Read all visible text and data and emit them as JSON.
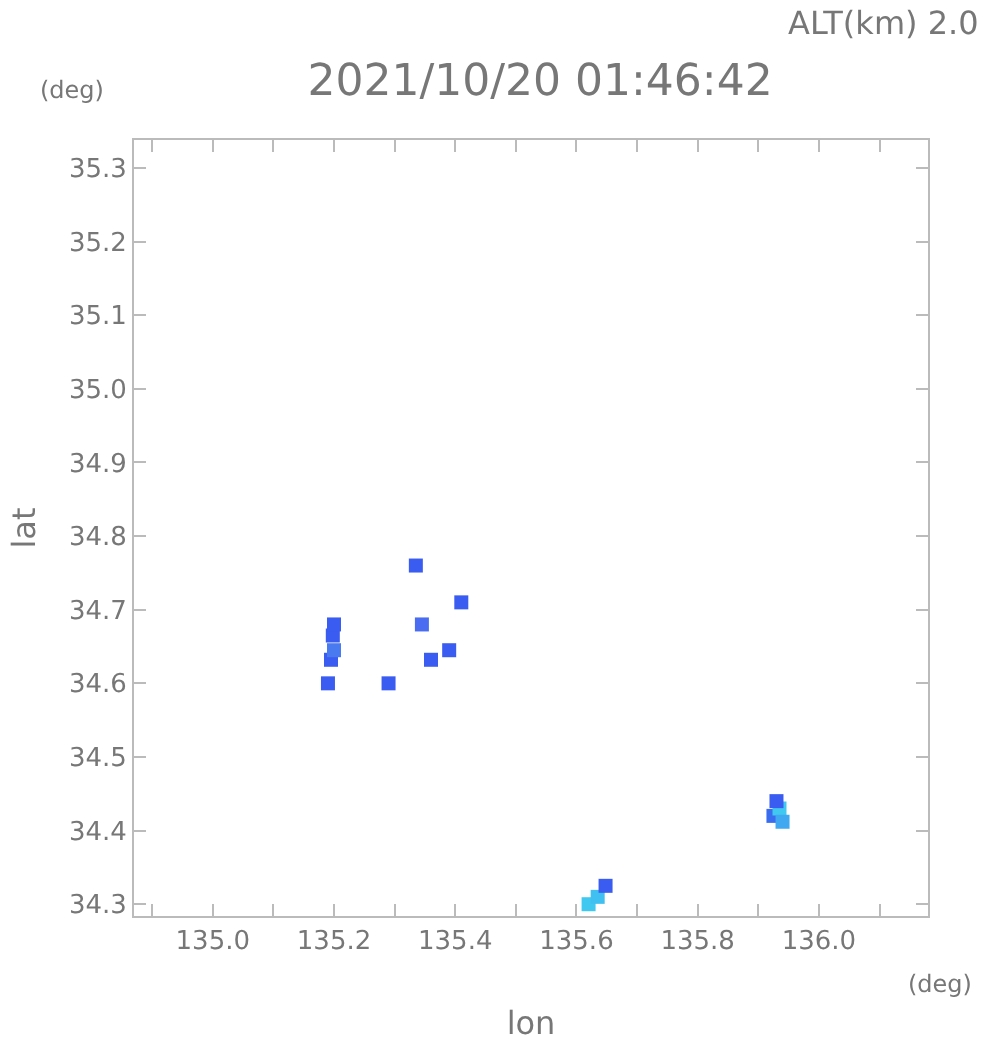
{
  "chart_data": {
    "type": "scatter",
    "title": "2021/10/20 01:46:42",
    "xlabel": "lon",
    "ylabel": "lat",
    "annotations": [
      "ALT(km) 2.0",
      "(deg)",
      "(deg)"
    ],
    "x": [
      135.19,
      135.195,
      135.2,
      135.198,
      135.2,
      135.29,
      135.335,
      135.345,
      135.39,
      135.41,
      135.36,
      135.62,
      135.635,
      135.648,
      135.925,
      135.935,
      135.94,
      135.93
    ],
    "values": [
      34.6,
      34.632,
      34.645,
      34.665,
      34.68,
      34.6,
      34.76,
      34.68,
      34.645,
      34.71,
      34.632,
      34.3,
      34.31,
      34.325,
      34.42,
      34.43,
      34.412,
      34.44
    ],
    "colors": [
      "#3a5cf0",
      "#3a5cf0",
      "#4a7af0",
      "#3a5cf0",
      "#3a5cf0",
      "#3a5cf0",
      "#3a5cf0",
      "#4a6cf0",
      "#3a5cf0",
      "#3a5cf0",
      "#3a5cf0",
      "#40c8f0",
      "#40c0f0",
      "#3a5cf0",
      "#3a6cf0",
      "#40c8f0",
      "#40a8f0",
      "#3a5cf0"
    ],
    "marker": "square",
    "grid": false,
    "xlim": [
      134.87,
      136.18
    ],
    "xticks": [
      {
        "value": 134.9,
        "label": null
      },
      {
        "value": 135.0,
        "label": "135.0"
      },
      {
        "value": 135.1,
        "label": null
      },
      135.2,
      {
        "value": 135.3,
        "label": null
      },
      135.4,
      {
        "value": 135.5,
        "label": null
      },
      135.6,
      {
        "value": 135.7,
        "label": null
      },
      135.8,
      {
        "value": 135.9,
        "label": null
      },
      {
        "value": 136.0,
        "label": "136.0"
      },
      {
        "value": 136.1,
        "label": null
      }
    ],
    "ylim": [
      34.284,
      35.338
    ],
    "yticks": [
      34.3,
      34.4,
      34.5,
      34.6,
      34.7,
      34.8,
      34.9,
      {
        "value": 35.0,
        "label": "35.0"
      },
      35.1,
      35.2,
      35.3
    ]
  }
}
